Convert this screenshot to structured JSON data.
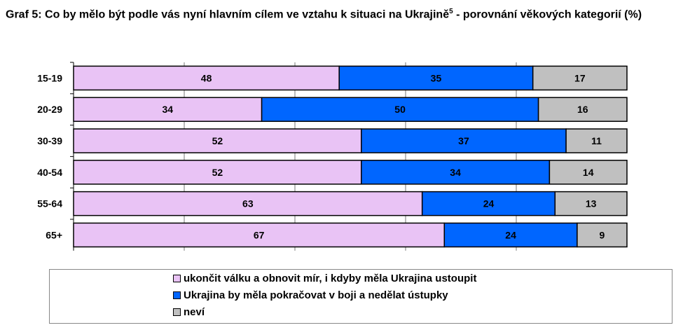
{
  "title": "Graf 5: Co by mělo být podle vás nyní hlavním cílem ve vztahu k situaci na Ukrajině",
  "title_footnote": "5",
  "title_suffix": " - porovnání věkových kategorií (%)",
  "chart_data": {
    "type": "bar",
    "orientation": "horizontal",
    "stacked": "100%",
    "categories": [
      "15-19",
      "20-29",
      "30-39",
      "40-54",
      "55-64",
      "65+"
    ],
    "series": [
      {
        "name": "ukončit válku a obnovit mír, i kdyby měla Ukrajina ustoupit",
        "color": "#E9C3F5",
        "values": [
          48,
          34,
          52,
          52,
          63,
          67
        ]
      },
      {
        "name": "Ukrajina by měla pokračovat v boji a nedělat ústupky",
        "color": "#0066FF",
        "values": [
          35,
          50,
          37,
          34,
          24,
          24
        ]
      },
      {
        "name": "neví",
        "color": "#C0C0C0",
        "values": [
          17,
          16,
          11,
          14,
          13,
          9
        ]
      }
    ],
    "xlim": [
      0,
      100
    ],
    "grid": true,
    "legend_position": "bottom"
  }
}
